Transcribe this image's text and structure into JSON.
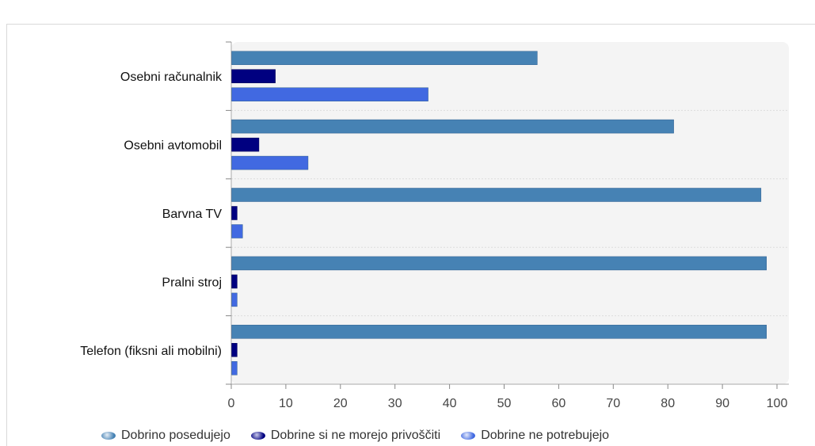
{
  "title": "",
  "chart_data": {
    "type": "bar",
    "orientation": "horizontal",
    "categories": [
      "Osebni računalnik",
      "Osebni avtomobil",
      "Barvna TV",
      "Pralni stroj",
      "Telefon (fiksni ali mobilni)"
    ],
    "series": [
      {
        "name": "Dobrino posedujejo",
        "color": "#4682b4",
        "values": [
          56,
          81,
          97,
          98,
          98
        ]
      },
      {
        "name": "Dobrine si ne morejo privoščiti",
        "color": "#000080",
        "values": [
          8,
          5,
          1,
          1,
          1
        ]
      },
      {
        "name": "Dobrine ne potrebujejo",
        "color": "#4169e1",
        "values": [
          36,
          14,
          2,
          1,
          1
        ]
      }
    ],
    "xlim": [
      0,
      100
    ],
    "xticks": [
      0,
      10,
      20,
      30,
      40,
      50,
      60,
      70,
      80,
      90,
      100
    ],
    "xlabel": "",
    "ylabel": "",
    "grid": false,
    "legend_position": "bottom"
  }
}
